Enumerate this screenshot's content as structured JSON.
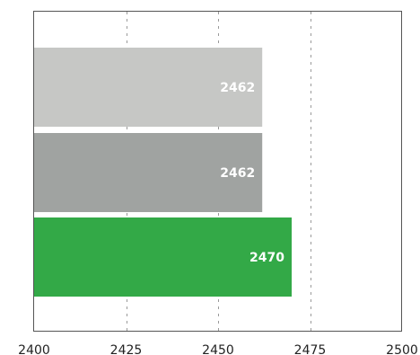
{
  "chart_data": {
    "type": "bar",
    "orientation": "horizontal",
    "categories": [
      "",
      "",
      ""
    ],
    "values": [
      2462,
      2462,
      2470
    ],
    "bar_colors": [
      "#c6c7c5",
      "#a0a3a1",
      "#33a947"
    ],
    "xlim": [
      2400,
      2500
    ],
    "xticks": [
      2400,
      2425,
      2450,
      2475,
      2500
    ],
    "tick_labels": [
      "2400",
      "2425",
      "2450",
      "2475",
      "2500"
    ],
    "data_labels": [
      "2462",
      "2462",
      "2470"
    ],
    "grid": true,
    "title": "",
    "xlabel": "",
    "ylabel": ""
  }
}
